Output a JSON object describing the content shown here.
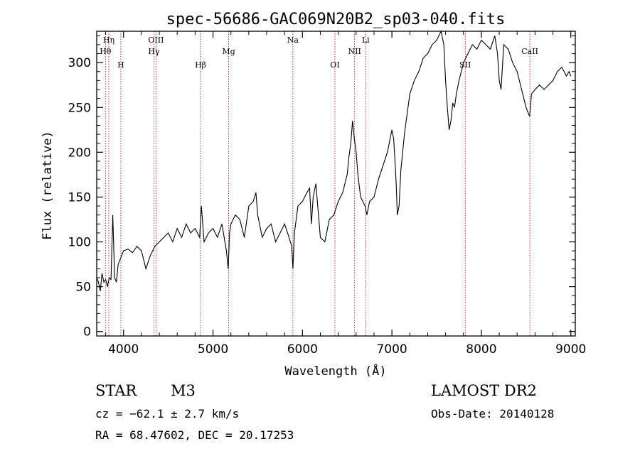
{
  "chart_data": {
    "type": "line",
    "title": "spec-56686-GAC069N20B2_sp03-040.fits",
    "xlabel": "Wavelength (Å)",
    "ylabel": "Flux (relative)",
    "xlim": [
      3700,
      9050
    ],
    "ylim": [
      -5,
      335
    ],
    "x_ticks": [
      4000,
      5000,
      6000,
      7000,
      8000,
      9000
    ],
    "y_ticks": [
      0,
      50,
      100,
      150,
      200,
      250,
      300
    ],
    "spectral_lines": [
      {
        "label": "Hη",
        "x": 3835,
        "tier": 0
      },
      {
        "label": "Hθ",
        "x": 3798,
        "tier": 1
      },
      {
        "label": "H",
        "x": 3970,
        "tier": 2
      },
      {
        "label": "OIII",
        "x": 4363,
        "tier": 0
      },
      {
        "label": "Hγ",
        "x": 4340,
        "tier": 1
      },
      {
        "label": "Hβ",
        "x": 4861,
        "tier": 2
      },
      {
        "label": "Mg",
        "x": 5175,
        "tier": 1
      },
      {
        "label": "Na",
        "x": 5893,
        "tier": 0
      },
      {
        "label": "OI",
        "x": 6363,
        "tier": 2
      },
      {
        "label": "NII",
        "x": 6583,
        "tier": 1
      },
      {
        "label": "Li",
        "x": 6707,
        "tier": 0
      },
      {
        "label": "SII",
        "x": 7820,
        "tier": 2
      },
      {
        "label": "CaII",
        "x": 8542,
        "tier": 1
      }
    ],
    "series": [
      {
        "x": [
          3700,
          3720,
          3740,
          3760,
          3780,
          3800,
          3820,
          3840,
          3860,
          3880,
          3900,
          3920,
          3940,
          3960,
          3980,
          4000,
          4050,
          4100,
          4150,
          4200,
          4250,
          4300,
          4350,
          4400,
          4450,
          4500,
          4550,
          4600,
          4650,
          4700,
          4750,
          4800,
          4850,
          4870,
          4900,
          4950,
          5000,
          5050,
          5100,
          5150,
          5170,
          5185,
          5200,
          5250,
          5300,
          5350,
          5400,
          5450,
          5480,
          5500,
          5550,
          5600,
          5650,
          5700,
          5750,
          5800,
          5850,
          5880,
          5893,
          5910,
          5950,
          6000,
          6050,
          6080,
          6100,
          6120,
          6150,
          6200,
          6250,
          6300,
          6350,
          6400,
          6450,
          6500,
          6520,
          6540,
          6560,
          6580,
          6600,
          6620,
          6650,
          6700,
          6720,
          6750,
          6800,
          6850,
          6900,
          6950,
          7000,
          7020,
          7040,
          7050,
          7060,
          7080,
          7100,
          7120,
          7140,
          7160,
          7200,
          7250,
          7300,
          7350,
          7400,
          7450,
          7500,
          7550,
          7580,
          7600,
          7620,
          7640,
          7660,
          7680,
          7700,
          7720,
          7750,
          7800,
          7850,
          7900,
          7950,
          8000,
          8050,
          8100,
          8150,
          8180,
          8200,
          8220,
          8250,
          8300,
          8350,
          8400,
          8450,
          8500,
          8540,
          8560,
          8600,
          8650,
          8700,
          8750,
          8800,
          8850,
          8900,
          8950,
          8980,
          9000
        ],
        "y": [
          60,
          55,
          45,
          65,
          55,
          58,
          50,
          60,
          58,
          130,
          60,
          55,
          75,
          80,
          85,
          90,
          92,
          88,
          95,
          90,
          70,
          85,
          95,
          100,
          105,
          110,
          100,
          115,
          105,
          120,
          110,
          115,
          105,
          140,
          100,
          110,
          115,
          105,
          120,
          90,
          70,
          110,
          120,
          130,
          125,
          105,
          140,
          145,
          155,
          130,
          105,
          115,
          120,
          100,
          110,
          120,
          105,
          95,
          70,
          110,
          140,
          145,
          155,
          160,
          120,
          150,
          165,
          105,
          100,
          125,
          130,
          145,
          155,
          175,
          195,
          210,
          235,
          215,
          200,
          175,
          150,
          140,
          130,
          145,
          150,
          170,
          185,
          200,
          225,
          215,
          180,
          160,
          130,
          140,
          180,
          200,
          220,
          235,
          265,
          280,
          290,
          305,
          310,
          320,
          325,
          335,
          320,
          280,
          250,
          225,
          235,
          255,
          250,
          265,
          280,
          300,
          310,
          320,
          315,
          325,
          320,
          315,
          330,
          310,
          280,
          270,
          320,
          315,
          300,
          290,
          270,
          250,
          240,
          265,
          270,
          275,
          270,
          275,
          280,
          290,
          295,
          285,
          290,
          285
        ]
      }
    ]
  },
  "footer": {
    "object_class": "STAR",
    "subclass": "M3",
    "survey": "LAMOST DR2",
    "cz": "cz = −62.1 ± 2.7 km/s",
    "obs_date": "Obs-Date: 20140128",
    "coords": "RA =  68.47602, DEC =  20.17253"
  }
}
